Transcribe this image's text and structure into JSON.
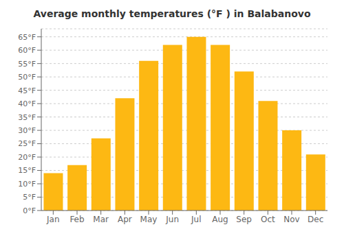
{
  "chart_data": {
    "type": "bar",
    "title": "Average monthly temperatures (°F ) in Balabanovo",
    "categories": [
      "Jan",
      "Feb",
      "Mar",
      "Apr",
      "May",
      "Jun",
      "Jul",
      "Aug",
      "Sep",
      "Oct",
      "Nov",
      "Dec"
    ],
    "values": [
      14,
      17,
      27,
      42,
      56,
      62,
      65,
      62,
      52,
      41,
      30,
      21
    ],
    "color": "#FDB813",
    "ylim": [
      0,
      68
    ],
    "yticks": [
      {
        "value": 0,
        "label": "0°F"
      },
      {
        "value": 5,
        "label": "5°F"
      },
      {
        "value": 10,
        "label": "10°F"
      },
      {
        "value": 15,
        "label": "15°F"
      },
      {
        "value": 20,
        "label": "20°F"
      },
      {
        "value": 25,
        "label": "25°F"
      },
      {
        "value": 30,
        "label": "30°F"
      },
      {
        "value": 35,
        "label": "35°F"
      },
      {
        "value": 40,
        "label": "40°F"
      },
      {
        "value": 45,
        "label": "45°F"
      },
      {
        "value": 50,
        "label": "50°F"
      },
      {
        "value": 55,
        "label": "55°F"
      },
      {
        "value": 60,
        "label": "60°F"
      },
      {
        "value": 65,
        "label": "65°F"
      }
    ],
    "grid": true
  }
}
